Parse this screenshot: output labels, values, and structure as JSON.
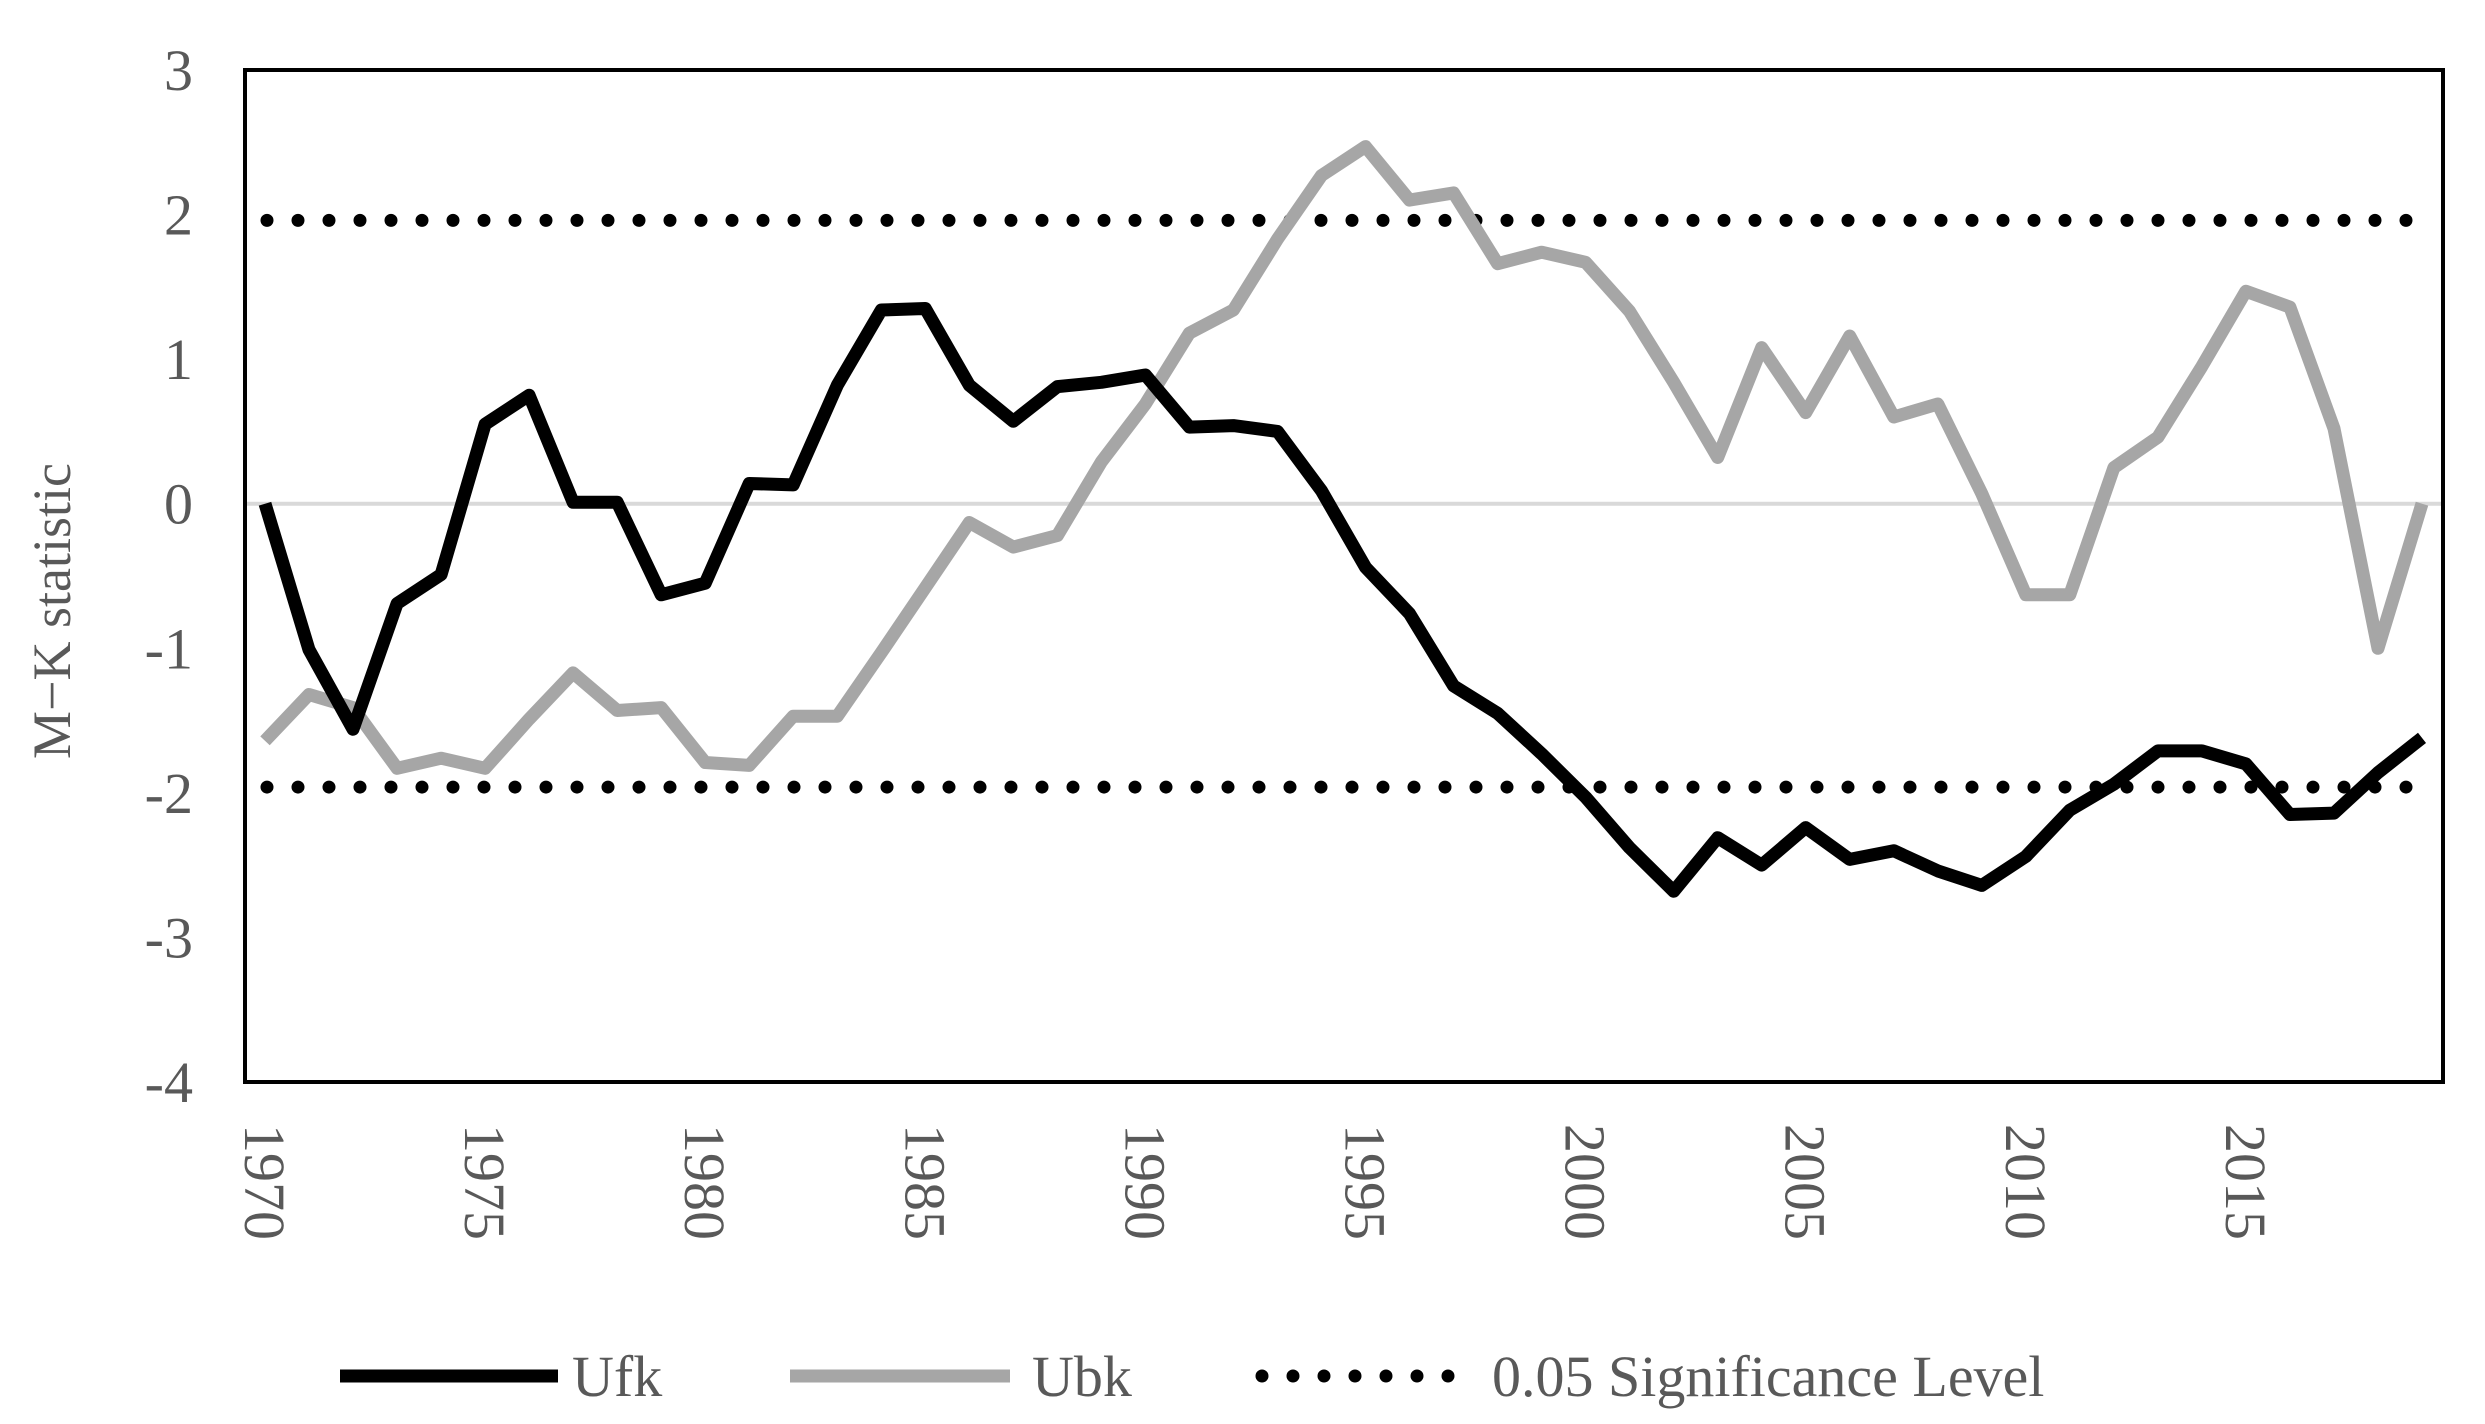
{
  "chart_data": {
    "type": "line",
    "title": "",
    "xlabel": "",
    "ylabel": "M−K statistic",
    "ylim": [
      -4,
      3
    ],
    "yticks": [
      3,
      2,
      1,
      0,
      -1,
      -2,
      -3,
      -4
    ],
    "ytick_labels": [
      "3",
      "2",
      "1",
      "0",
      "-1",
      "-2",
      "-3",
      "-4"
    ],
    "xlim": [
      1970,
      2019
    ],
    "xticks": [
      1970,
      1975,
      1980,
      1985,
      1990,
      1995,
      2000,
      2005,
      2010,
      2015
    ],
    "xtick_labels": [
      "1970",
      "1975",
      "1980",
      "1985",
      "1990",
      "1995",
      "2000",
      "2005",
      "2010",
      "2015"
    ],
    "x": [
      1970,
      1971,
      1972,
      1973,
      1974,
      1975,
      1976,
      1977,
      1978,
      1979,
      1980,
      1981,
      1982,
      1983,
      1984,
      1985,
      1986,
      1987,
      1988,
      1989,
      1990,
      1991,
      1992,
      1993,
      1994,
      1995,
      1996,
      1997,
      1998,
      1999,
      2000,
      2001,
      2002,
      2003,
      2004,
      2005,
      2006,
      2007,
      2008,
      2009,
      2010,
      2011,
      2012,
      2013,
      2014,
      2015,
      2016,
      2017,
      2018,
      2019
    ],
    "series": [
      {
        "name": "Ufk",
        "color": "#000000",
        "style": "solid",
        "values": [
          0,
          -1.01,
          -1.56,
          -0.69,
          -0.49,
          0.55,
          0.75,
          0.01,
          0.01,
          -0.63,
          -0.55,
          0.14,
          0.13,
          0.82,
          1.34,
          1.35,
          0.82,
          0.57,
          0.81,
          0.84,
          0.89,
          0.53,
          0.54,
          0.5,
          0.09,
          -0.44,
          -0.76,
          -1.26,
          -1.45,
          -1.73,
          -2.03,
          -2.38,
          -2.68,
          -2.31,
          -2.5,
          -2.24,
          -2.46,
          -2.4,
          -2.54,
          -2.64,
          -2.44,
          -2.12,
          -1.94,
          -1.71,
          -1.71,
          -1.8,
          -2.15,
          -2.14,
          -1.86,
          -1.62
        ]
      },
      {
        "name": "Ubk",
        "color": "#a6a6a6",
        "style": "solid",
        "values": [
          -1.64,
          -1.32,
          -1.41,
          -1.83,
          -1.76,
          -1.83,
          -1.49,
          -1.17,
          -1.43,
          -1.41,
          -1.79,
          -1.81,
          -1.47,
          -1.47,
          -1.03,
          -0.58,
          -0.13,
          -0.3,
          -0.22,
          0.29,
          0.69,
          1.18,
          1.34,
          1.83,
          2.27,
          2.47,
          2.1,
          2.15,
          1.66,
          1.74,
          1.67,
          1.33,
          0.84,
          0.32,
          1.08,
          0.63,
          1.16,
          0.6,
          0.69,
          0.07,
          -0.63,
          -0.63,
          0.25,
          0.46,
          0.95,
          1.47,
          1.36,
          0.52,
          -1.0,
          0
        ]
      }
    ],
    "reference_lines": [
      {
        "name": "0.05 Significance Level",
        "values": [
          1.96,
          -1.96
        ],
        "color": "#000000",
        "style": "dotted"
      },
      {
        "name": "zero",
        "values": [
          0
        ],
        "color": "#d9d9d9",
        "style": "solid"
      }
    ],
    "legend": {
      "position": "bottom",
      "entries": [
        "Ufk",
        "Ubk",
        "0.05 Significance Level"
      ]
    }
  }
}
